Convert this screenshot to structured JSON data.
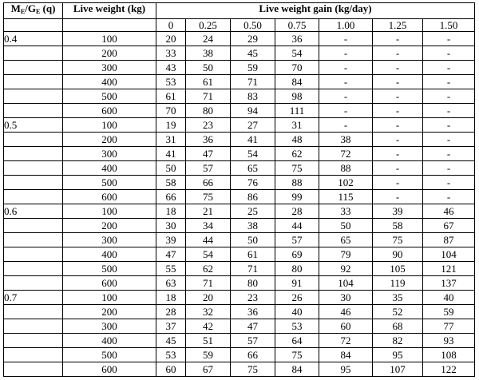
{
  "table": {
    "headers": {
      "q_label_main": "M",
      "q_label_sub1": "E",
      "q_label_mid": "/G",
      "q_label_sub2": "E",
      "q_label_end": " (q)",
      "live_weight": "Live weight (kg)",
      "gain": "Live weight gain (kg/day)",
      "gain_levels": [
        "0",
        "0.25",
        "0.50",
        "0.75",
        "1.00",
        "1.25",
        "1.50"
      ]
    },
    "groups": [
      {
        "q": "0.4",
        "rows": [
          {
            "weight": "100",
            "values": [
              "20",
              "24",
              "29",
              "36",
              "-",
              "-",
              "-"
            ]
          },
          {
            "weight": "200",
            "values": [
              "33",
              "38",
              "45",
              "54",
              "-",
              "-",
              "-"
            ]
          },
          {
            "weight": "300",
            "values": [
              "43",
              "50",
              "59",
              "70",
              "-",
              "-",
              "-"
            ]
          },
          {
            "weight": "400",
            "values": [
              "53",
              "61",
              "71",
              "84",
              "-",
              "-",
              "-"
            ]
          },
          {
            "weight": "500",
            "values": [
              "61",
              "71",
              "83",
              "98",
              "-",
              "-",
              "-"
            ]
          },
          {
            "weight": "600",
            "values": [
              "70",
              "80",
              "94",
              "111",
              "-",
              "-",
              "-"
            ]
          }
        ]
      },
      {
        "q": "0.5",
        "rows": [
          {
            "weight": "100",
            "values": [
              "19",
              "23",
              "27",
              "31",
              "-",
              "-",
              "-"
            ]
          },
          {
            "weight": "200",
            "values": [
              "31",
              "36",
              "41",
              "48",
              "38",
              "-",
              "-"
            ]
          },
          {
            "weight": "300",
            "values": [
              "41",
              "47",
              "54",
              "62",
              "72",
              "-",
              "-"
            ]
          },
          {
            "weight": "400",
            "values": [
              "50",
              "57",
              "65",
              "75",
              "88",
              "-",
              "-"
            ]
          },
          {
            "weight": "500",
            "values": [
              "58",
              "66",
              "76",
              "88",
              "102",
              "-",
              "-"
            ]
          },
          {
            "weight": "600",
            "values": [
              "66",
              "75",
              "86",
              "99",
              "115",
              "-",
              "-"
            ]
          }
        ]
      },
      {
        "q": "0.6",
        "rows": [
          {
            "weight": "100",
            "values": [
              "18",
              "21",
              "25",
              "28",
              "33",
              "39",
              "46"
            ]
          },
          {
            "weight": "200",
            "values": [
              "30",
              "34",
              "38",
              "44",
              "50",
              "58",
              "67"
            ]
          },
          {
            "weight": "300",
            "values": [
              "39",
              "44",
              "50",
              "57",
              "65",
              "75",
              "87"
            ]
          },
          {
            "weight": "400",
            "values": [
              "47",
              "54",
              "61",
              "69",
              "79",
              "90",
              "104"
            ]
          },
          {
            "weight": "500",
            "values": [
              "55",
              "62",
              "71",
              "80",
              "92",
              "105",
              "121"
            ]
          },
          {
            "weight": "600",
            "values": [
              "63",
              "71",
              "80",
              "91",
              "104",
              "119",
              "137"
            ]
          }
        ]
      },
      {
        "q": "0.7",
        "rows": [
          {
            "weight": "100",
            "values": [
              "18",
              "20",
              "23",
              "26",
              "30",
              "35",
              "40"
            ]
          },
          {
            "weight": "200",
            "values": [
              "28",
              "32",
              "36",
              "40",
              "46",
              "52",
              "59"
            ]
          },
          {
            "weight": "300",
            "values": [
              "37",
              "42",
              "47",
              "53",
              "60",
              "68",
              "77"
            ]
          },
          {
            "weight": "400",
            "values": [
              "45",
              "51",
              "57",
              "64",
              "72",
              "82",
              "93"
            ]
          },
          {
            "weight": "500",
            "values": [
              "53",
              "59",
              "66",
              "75",
              "84",
              "95",
              "108"
            ]
          },
          {
            "weight": "600",
            "values": [
              "60",
              "67",
              "75",
              "84",
              "95",
              "107",
              "122"
            ]
          }
        ]
      }
    ]
  }
}
